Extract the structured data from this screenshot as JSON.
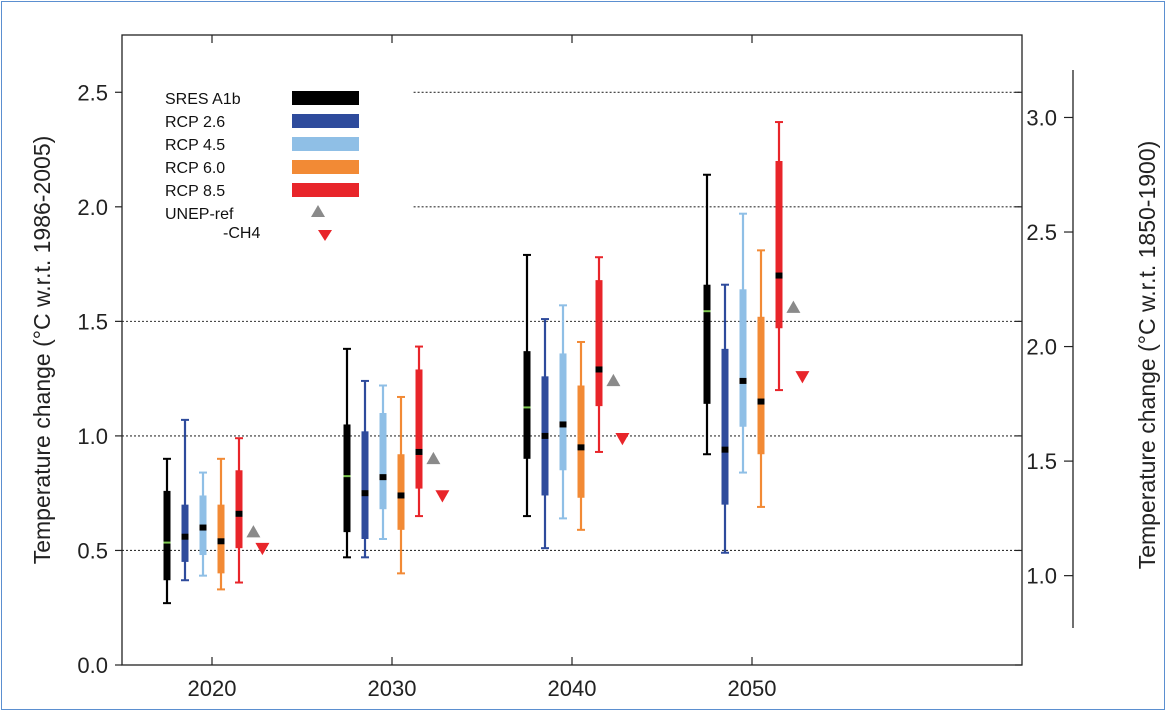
{
  "chart_data": {
    "type": "box",
    "ylabel_left": "Temperature change (°C w.r.t. 1986-2005)",
    "ylabel_right": "Temperature change (°C w.r.t. 1850-1900)",
    "ylim_left": [
      0.0,
      2.75
    ],
    "yticks_left": [
      "0.0",
      "0.5",
      "1.0",
      "1.5",
      "2.0",
      "2.5"
    ],
    "yticks_right": [
      "1.0",
      "1.5",
      "2.0",
      "2.5",
      "3.0"
    ],
    "right_axis_offset": 0.61,
    "xlim": [
      2015,
      2065
    ],
    "xticks": [
      "2020",
      "2030",
      "2040",
      "2050"
    ],
    "grid": "dotted horizontal at 0.5, 1.0, 1.5, 2.0, 2.5",
    "legend": "top-left",
    "series": [
      {
        "name": "SRES A1b",
        "color": "#000000",
        "median_color": "#7ec850",
        "boxes": [
          {
            "x": 2017.5,
            "min": 0.27,
            "q1": 0.37,
            "median": 0.53,
            "q3": 0.76,
            "max": 0.9
          },
          {
            "x": 2027.5,
            "min": 0.47,
            "q1": 0.58,
            "median": 0.82,
            "q3": 1.05,
            "max": 1.38
          },
          {
            "x": 2037.5,
            "min": 0.65,
            "q1": 0.9,
            "median": 1.12,
            "q3": 1.37,
            "max": 1.79
          },
          {
            "x": 2047.5,
            "min": 0.92,
            "q1": 1.14,
            "median": 1.54,
            "q3": 1.66,
            "max": 2.14
          }
        ]
      },
      {
        "name": "RCP 2.6",
        "color": "#2e4b9c",
        "median_color": "#000000",
        "boxes": [
          {
            "x": 2018.5,
            "min": 0.37,
            "q1": 0.45,
            "median": 0.56,
            "q3": 0.7,
            "max": 1.07
          },
          {
            "x": 2028.5,
            "min": 0.47,
            "q1": 0.55,
            "median": 0.75,
            "q3": 1.02,
            "max": 1.24
          },
          {
            "x": 2038.5,
            "min": 0.51,
            "q1": 0.74,
            "median": 1.0,
            "q3": 1.26,
            "max": 1.51
          },
          {
            "x": 2048.5,
            "min": 0.49,
            "q1": 0.7,
            "median": 0.94,
            "q3": 1.38,
            "max": 1.66
          }
        ]
      },
      {
        "name": "RCP 4.5",
        "color": "#8fbfe6",
        "median_color": "#000000",
        "boxes": [
          {
            "x": 2019.5,
            "min": 0.39,
            "q1": 0.48,
            "median": 0.6,
            "q3": 0.74,
            "max": 0.84
          },
          {
            "x": 2029.5,
            "min": 0.55,
            "q1": 0.68,
            "median": 0.82,
            "q3": 1.1,
            "max": 1.22
          },
          {
            "x": 2039.5,
            "min": 0.64,
            "q1": 0.85,
            "median": 1.05,
            "q3": 1.36,
            "max": 1.57
          },
          {
            "x": 2049.5,
            "min": 0.84,
            "q1": 1.04,
            "median": 1.24,
            "q3": 1.64,
            "max": 1.97
          }
        ]
      },
      {
        "name": "RCP 6.0",
        "color": "#f28a35",
        "median_color": "#000000",
        "boxes": [
          {
            "x": 2020.5,
            "min": 0.33,
            "q1": 0.4,
            "median": 0.54,
            "q3": 0.7,
            "max": 0.9
          },
          {
            "x": 2030.5,
            "min": 0.4,
            "q1": 0.59,
            "median": 0.74,
            "q3": 0.92,
            "max": 1.17
          },
          {
            "x": 2040.5,
            "min": 0.59,
            "q1": 0.73,
            "median": 0.95,
            "q3": 1.22,
            "max": 1.41
          },
          {
            "x": 2050.5,
            "min": 0.69,
            "q1": 0.92,
            "median": 1.15,
            "q3": 1.52,
            "max": 1.81
          }
        ]
      },
      {
        "name": "RCP 8.5",
        "color": "#e8252a",
        "median_color": "#000000",
        "boxes": [
          {
            "x": 2021.5,
            "min": 0.36,
            "q1": 0.51,
            "median": 0.66,
            "q3": 0.85,
            "max": 0.99
          },
          {
            "x": 2031.5,
            "min": 0.65,
            "q1": 0.77,
            "median": 0.93,
            "q3": 1.29,
            "max": 1.39
          },
          {
            "x": 2041.5,
            "min": 0.93,
            "q1": 1.13,
            "median": 1.29,
            "q3": 1.68,
            "max": 1.78
          },
          {
            "x": 2051.5,
            "min": 1.2,
            "q1": 1.47,
            "median": 1.7,
            "q3": 2.2,
            "max": 2.37
          }
        ]
      }
    ],
    "markers": [
      {
        "name": "UNEP-ref",
        "shape": "triangle-up",
        "color": "#8a8a8a",
        "points": [
          {
            "x": 2022.3,
            "y": 0.58
          },
          {
            "x": 2032.3,
            "y": 0.9
          },
          {
            "x": 2042.3,
            "y": 1.24
          },
          {
            "x": 2052.3,
            "y": 1.56
          }
        ]
      },
      {
        "name": "-CH4",
        "shape": "triangle-down",
        "color": "#e8252a",
        "points": [
          {
            "x": 2022.8,
            "y": 0.51
          },
          {
            "x": 2032.8,
            "y": 0.74
          },
          {
            "x": 2042.8,
            "y": 0.99
          },
          {
            "x": 2052.8,
            "y": 1.26
          }
        ]
      }
    ]
  }
}
